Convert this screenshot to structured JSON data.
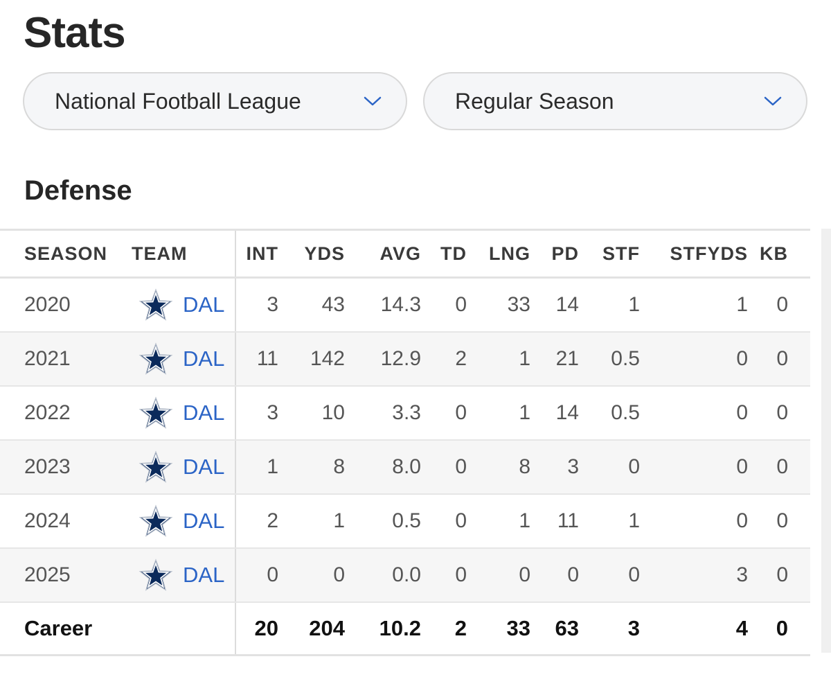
{
  "page": {
    "title": "Stats"
  },
  "filters": {
    "league": {
      "value": "National Football League",
      "icon": "chevron-down-icon"
    },
    "season_type": {
      "value": "Regular Season",
      "icon": "chevron-down-icon"
    }
  },
  "section": {
    "title": "Defense"
  },
  "colors": {
    "link": "#2b64c6",
    "star_fill": "#0b2a5b",
    "star_stroke": "#ffffff",
    "row_alt": "#f6f6f6"
  },
  "table": {
    "headers": {
      "season": "SEASON",
      "team": "TEAM",
      "int": "INT",
      "yds": "YDS",
      "avg": "AVG",
      "td": "TD",
      "lng": "LNG",
      "pd": "PD",
      "stf": "STF",
      "stfyds": "STFYDS",
      "kb": "KB"
    },
    "rows": [
      {
        "season": "2020",
        "team": "DAL",
        "int": "3",
        "yds": "43",
        "avg": "14.3",
        "td": "0",
        "lng": "33",
        "pd": "14",
        "stf": "1",
        "stfyds": "1",
        "kb": "0"
      },
      {
        "season": "2021",
        "team": "DAL",
        "int": "11",
        "yds": "142",
        "avg": "12.9",
        "td": "2",
        "lng": "1",
        "pd": "21",
        "stf": "0.5",
        "stfyds": "0",
        "kb": "0"
      },
      {
        "season": "2022",
        "team": "DAL",
        "int": "3",
        "yds": "10",
        "avg": "3.3",
        "td": "0",
        "lng": "1",
        "pd": "14",
        "stf": "0.5",
        "stfyds": "0",
        "kb": "0"
      },
      {
        "season": "2023",
        "team": "DAL",
        "int": "1",
        "yds": "8",
        "avg": "8.0",
        "td": "0",
        "lng": "8",
        "pd": "3",
        "stf": "0",
        "stfyds": "0",
        "kb": "0"
      },
      {
        "season": "2024",
        "team": "DAL",
        "int": "2",
        "yds": "1",
        "avg": "0.5",
        "td": "0",
        "lng": "1",
        "pd": "11",
        "stf": "1",
        "stfyds": "0",
        "kb": "0"
      },
      {
        "season": "2025",
        "team": "DAL",
        "int": "0",
        "yds": "0",
        "avg": "0.0",
        "td": "0",
        "lng": "0",
        "pd": "0",
        "stf": "0",
        "stfyds": "3",
        "kb": "0"
      }
    ],
    "career": {
      "label": "Career",
      "int": "20",
      "yds": "204",
      "avg": "10.2",
      "td": "2",
      "lng": "33",
      "pd": "63",
      "stf": "3",
      "stfyds": "4",
      "kb": "0"
    }
  }
}
